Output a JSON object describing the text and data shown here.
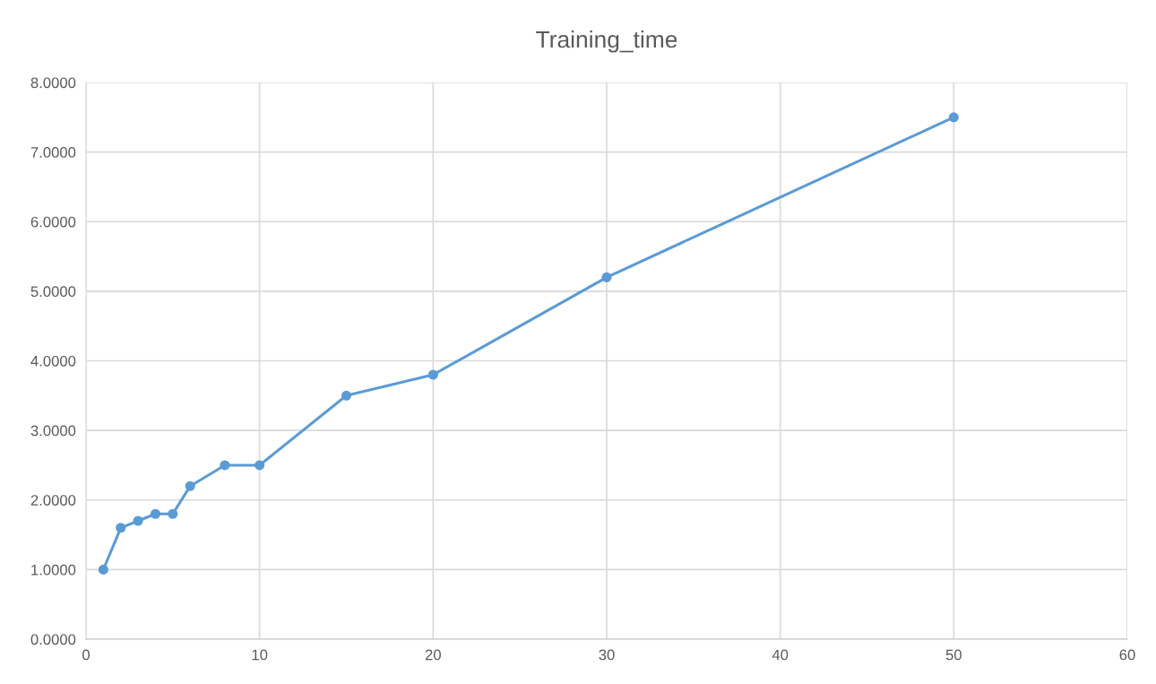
{
  "chart_data": {
    "type": "line",
    "title": "Training_time",
    "x": [
      1,
      2,
      3,
      4,
      5,
      6,
      8,
      10,
      15,
      20,
      30,
      50
    ],
    "series": [
      {
        "color": "#5b9bd5",
        "values": [
          1.0,
          1.6,
          1.7,
          1.8,
          1.8,
          2.2,
          2.5,
          2.5,
          3.5,
          3.8,
          5.2,
          7.5
        ]
      }
    ],
    "xlim": [
      0,
      60
    ],
    "xticks": [
      0,
      10,
      20,
      30,
      40,
      50,
      60
    ],
    "ylim": [
      0,
      8
    ],
    "yticks": [
      {
        "value": 0,
        "label": "0.0000"
      },
      {
        "value": 1,
        "label": "1.0000"
      },
      {
        "value": 2,
        "label": "2.0000"
      },
      {
        "value": 3,
        "label": "3.0000"
      },
      {
        "value": 4,
        "label": "4.0000"
      },
      {
        "value": 5,
        "label": "5.0000"
      },
      {
        "value": 6,
        "label": "6.0000"
      },
      {
        "value": 7,
        "label": "7.0000"
      },
      {
        "value": 8,
        "label": "8.0000"
      }
    ],
    "grid": true,
    "marker": "circle",
    "line_style": "solid",
    "legend": false
  }
}
